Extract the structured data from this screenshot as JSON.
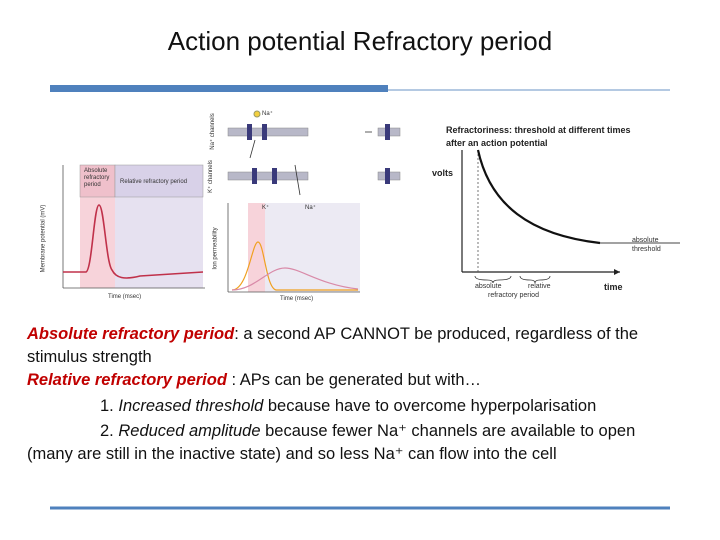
{
  "header": {
    "title": "Action potential Refractory period"
  },
  "figure": {
    "left": {
      "absolute_label": "Absolute refractory period",
      "relative_label": "Relative refractory period",
      "y_label": "Membrane potential (mV)",
      "x_label": "Time (msec)"
    },
    "middle": {
      "na_top": "Na⁺",
      "na_channels": "Na⁺ channels",
      "k_channels": "K⁺ channels",
      "k_ion": "K⁺",
      "na_ion": "Na⁺",
      "y_label": "Ion permeability",
      "x_label": "Time (msec)"
    },
    "right": {
      "title": "Refractoriness: threshold at different times after an action potential",
      "y_label": "volts",
      "threshold_label": "absolute threshold",
      "absolute": "absolute",
      "relative": "relative",
      "period": "refractory period",
      "x_label": "time"
    }
  },
  "body": {
    "lines": [
      [
        "Absolute refractory period",
        ": a second AP CANNOT be produced, regardless of the"
      ],
      [
        "stimulus strength"
      ],
      [
        "Relative refractory period",
        " : APs can be generated but with…"
      ],
      [
        "1. ",
        "Increased threshold",
        " because have to overcome hyperpolarisation"
      ],
      [
        "2. ",
        "Reduced amplitude",
        " because fewer Na⁺ channels are available to open"
      ],
      [
        "(many are still in the inactive state) and so less Na⁺ can flow into the cell"
      ]
    ]
  }
}
